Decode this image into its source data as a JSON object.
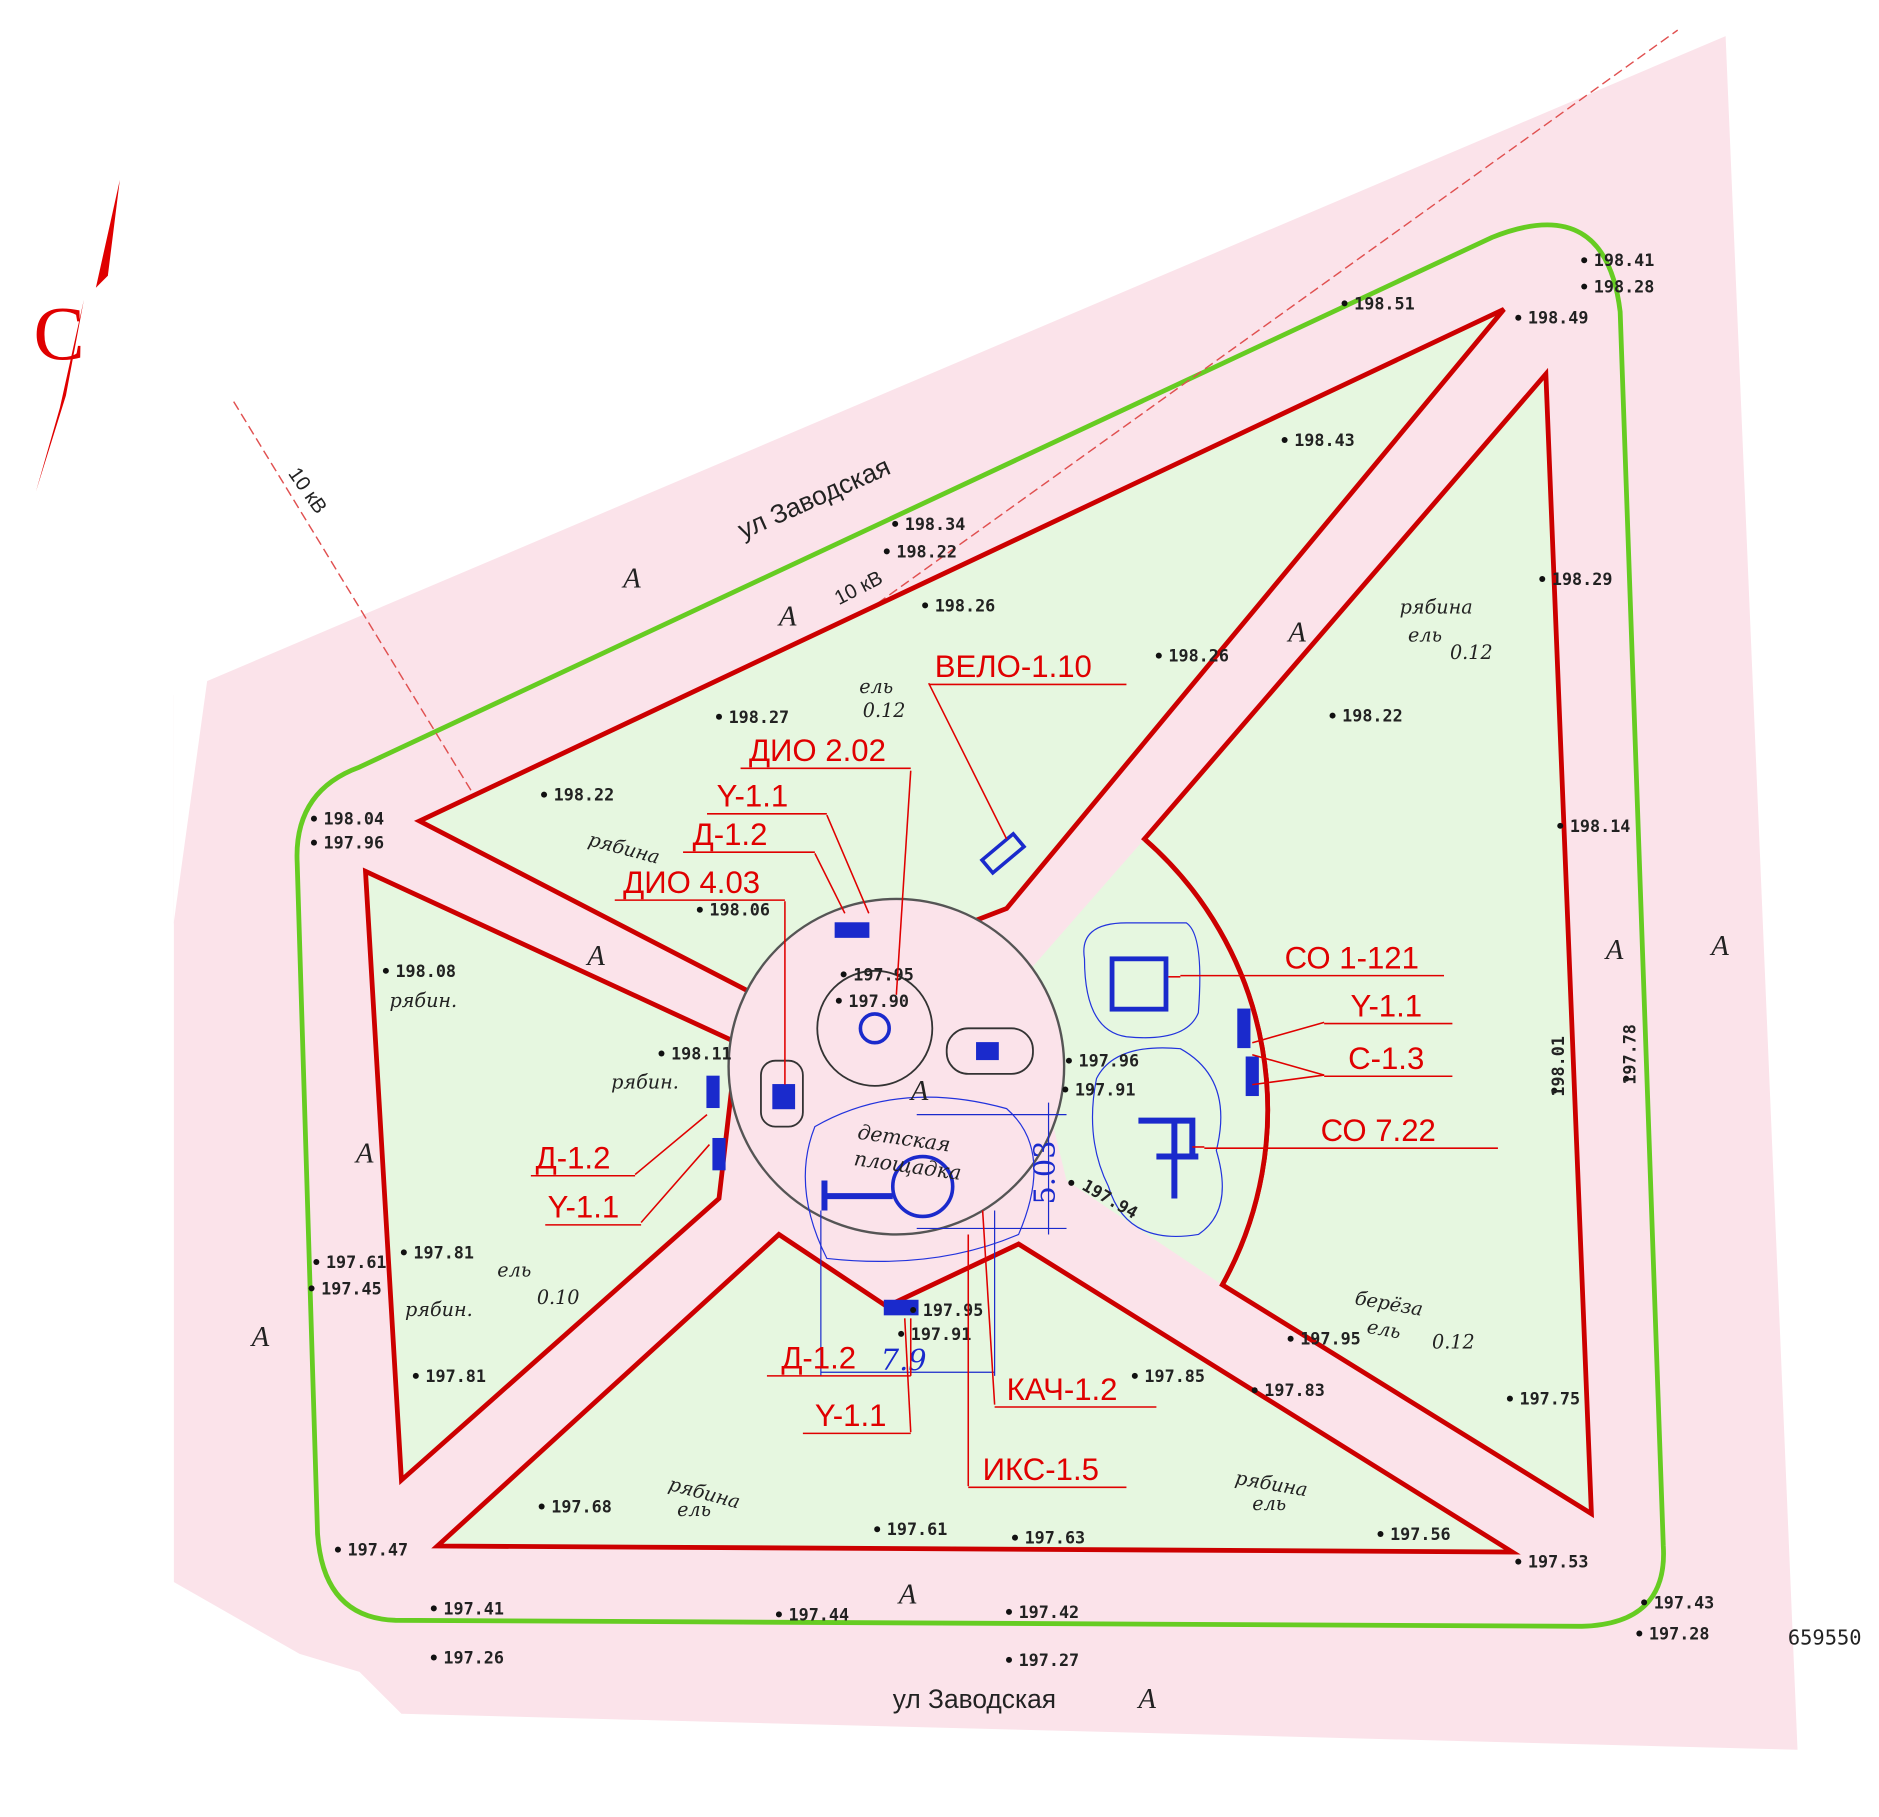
{
  "north": "С",
  "streets": [
    "ул Заводская",
    "ул Заводская"
  ],
  "power_line": [
    "10 кВ",
    "10 кВ"
  ],
  "equipment_labels": [
    "ВЕЛО-1.10",
    "ДИО 2.02",
    "Y-1.1",
    "Д-1.2",
    "ДИО 4.03",
    "СО 1-121",
    "Y-1.1",
    "С-1.3",
    "СО 7.22",
    "Д-1.2",
    "Y-1.1",
    "Д-1.2",
    "Y-1.1",
    "КАЧ-1.2",
    "ИКС-1.5"
  ],
  "elevations": [
    "198.41",
    "198.28",
    "198.51",
    "198.49",
    "198.43",
    "198.34",
    "198.22",
    "198.26",
    "198.29",
    "198.26",
    "198.22",
    "198.27",
    "198.22",
    "198.04",
    "197.96",
    "198.06",
    "198.14",
    "198.08",
    "197.95",
    "197.90",
    "198.11",
    "197.96",
    "197.91",
    "197.94",
    "198.01",
    "197.78",
    "197.81",
    "197.61",
    "197.45",
    "197.81",
    "197.95",
    "197.91",
    "197.95",
    "197.85",
    "197.83",
    "197.75",
    "197.68",
    "197.61",
    "197.63",
    "197.56",
    "197.47",
    "197.53",
    "197.41",
    "197.44",
    "197.42",
    "197.43",
    "197.28",
    "197.26",
    "197.27"
  ],
  "vegetation": [
    "рябина",
    "ель",
    "0.12",
    "ель",
    "0.12",
    "рябина",
    "рябин.",
    "рябин.",
    "ель",
    "0.10",
    "рябин.",
    "берёза",
    "ель",
    "0.12",
    "рябина",
    "ель",
    "рябина",
    "ель"
  ],
  "zone_marks": [
    "A",
    "A",
    "A",
    "A",
    "A",
    "A",
    "A",
    "A",
    "A",
    "A",
    "A"
  ],
  "playground": [
    "детская",
    "площадка"
  ],
  "dimensions": [
    "5.03",
    "7.9"
  ],
  "coordinate": "659550"
}
